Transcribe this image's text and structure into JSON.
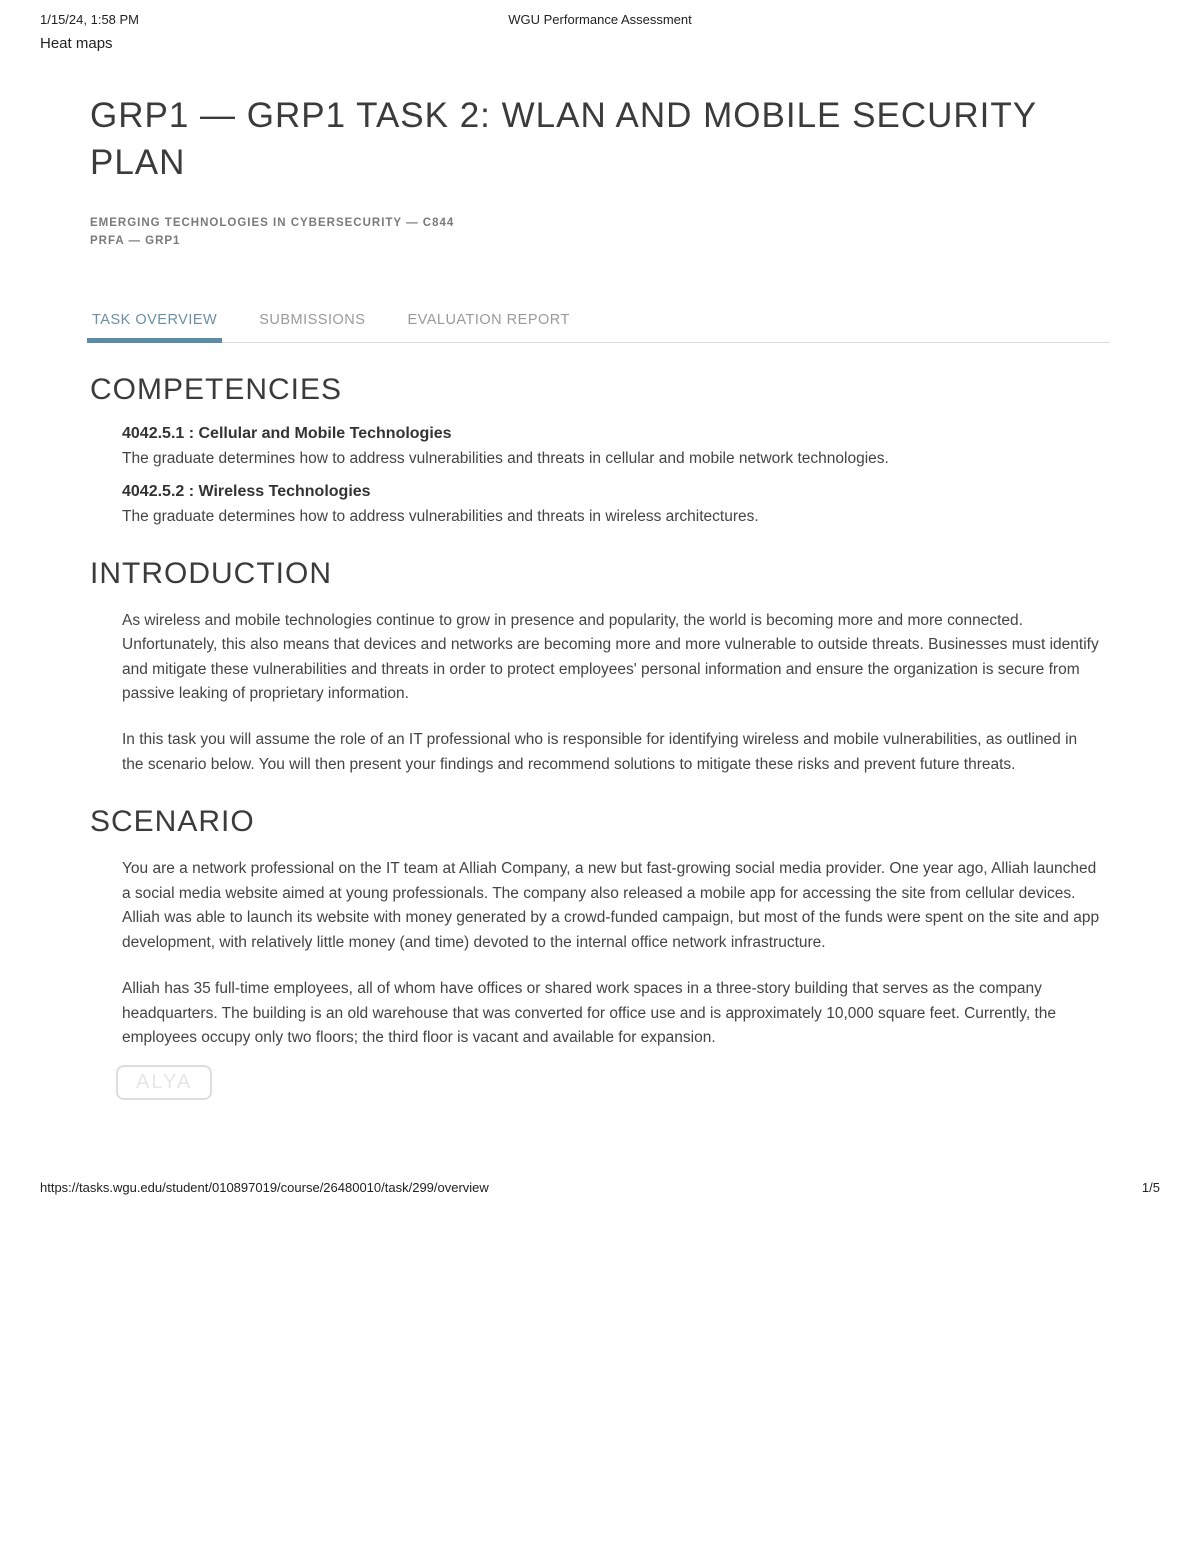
{
  "print_header": {
    "datetime": "1/15/24, 1:58 PM",
    "center": "WGU Performance Assessment"
  },
  "top_label": "Heat maps",
  "page_title": "GRP1 — GRP1 TASK 2: WLAN AND MOBILE SECURITY PLAN",
  "meta": {
    "course": "EMERGING TECHNOLOGIES IN CYBERSECURITY — C844",
    "prfa": "PRFA — GRP1"
  },
  "tabs": {
    "overview": "TASK OVERVIEW",
    "submissions": "SUBMISSIONS",
    "evaluation": "EVALUATION REPORT"
  },
  "sections": {
    "competencies": {
      "heading": "COMPETENCIES",
      "items": [
        {
          "title": "4042.5.1 :  Cellular and Mobile Technologies",
          "text": "The graduate determines how to address vulnerabilities and threats in cellular and mobile network technologies."
        },
        {
          "title": "4042.5.2 :  Wireless Technologies",
          "text": "The graduate determines how to address vulnerabilities and threats in wireless architectures."
        }
      ]
    },
    "introduction": {
      "heading": "INTRODUCTION",
      "paragraphs": [
        "As wireless and mobile technologies continue to grow in presence and popularity, the world is becoming more and more connected. Unfortunately, this also means that devices and networks are becoming more and more vulnerable to outside threats. Businesses must identify and mitigate these vulnerabilities and threats in order to protect employees' personal information and ensure the organization is secure from passive leaking of proprietary information.",
        "In this task you will assume the role of an IT professional who is responsible for identifying wireless and mobile vulnerabilities, as outlined in the scenario below. You will then present your findings and recommend solutions to mitigate these risks and prevent future threats."
      ]
    },
    "scenario": {
      "heading": "SCENARIO",
      "paragraphs": [
        "You are a network professional on the IT team at Alliah Company, a new but fast-growing social media provider. One year ago, Alliah launched a social media website aimed at young professionals. The company also released a mobile app for accessing the site from cellular devices. Alliah was able to launch its website with money generated by a crowd-funded campaign, but most of the funds were spent on the site and app development, with relatively little money (and time) devoted to the internal office network infrastructure.",
        "Alliah has 35 full-time employees, all of whom have offices or shared work spaces in a three-story building that serves as the company headquarters. The building is an old warehouse that was converted for office use and is approximately 10,000 square feet. Currently, the employees occupy only two floors; the third floor is vacant and available for expansion."
      ]
    }
  },
  "watermark": "ALYA",
  "print_footer": {
    "url": "https://tasks.wgu.edu/student/010897019/course/26480010/task/299/overview",
    "page": "1/5"
  }
}
